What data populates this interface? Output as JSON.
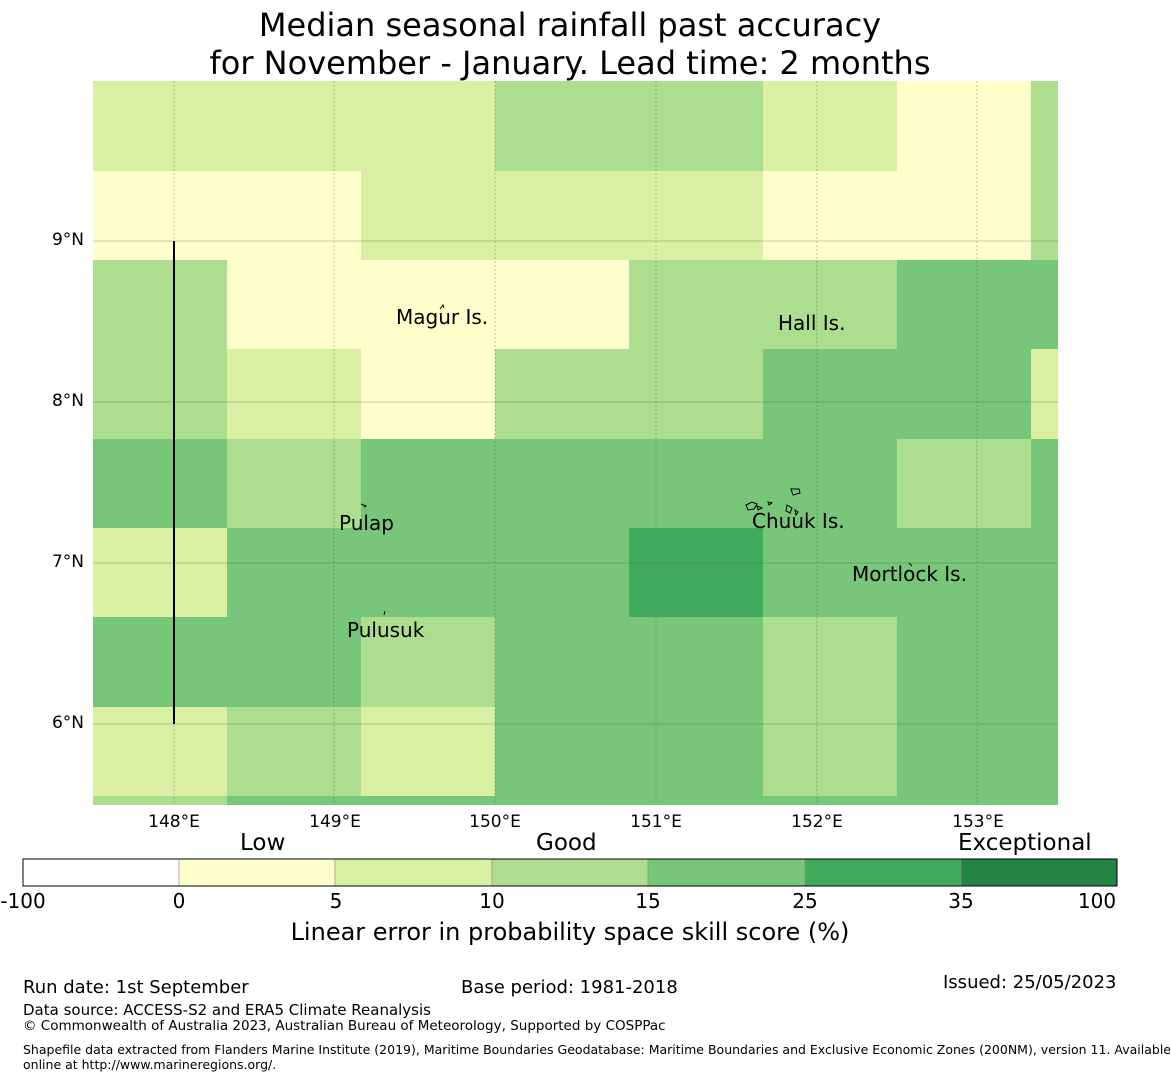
{
  "title": {
    "line1": "Median seasonal rainfall past accuracy",
    "line2": "for November - January. Lead time: 2 months"
  },
  "map": {
    "lat_labels": [
      "9°N",
      "8°N",
      "7°N",
      "6°N"
    ],
    "lon_labels": [
      "148°E",
      "149°E",
      "150°E",
      "151°E",
      "152°E",
      "153°E"
    ],
    "places": [
      "Magur Is.",
      "Hall Is.",
      "Pulap",
      "Chuuk Is.",
      "Mortlock Is.",
      "Pulusuk"
    ],
    "category_colors": [
      "#ffffcc",
      "#d9f0a3",
      "#addd8e",
      "#78c679",
      "#41ab5d",
      "#238443"
    ],
    "grid_categories": [
      [
        1,
        1,
        1,
        2,
        2,
        1,
        0,
        2
      ],
      [
        0,
        0,
        1,
        1,
        1,
        0,
        0,
        2
      ],
      [
        2,
        0,
        0,
        0,
        2,
        2,
        3,
        3
      ],
      [
        2,
        1,
        0,
        2,
        2,
        3,
        3,
        1
      ],
      [
        3,
        2,
        3,
        3,
        3,
        3,
        2,
        3
      ],
      [
        1,
        3,
        3,
        3,
        4,
        3,
        3,
        3
      ],
      [
        3,
        3,
        2,
        3,
        3,
        2,
        3,
        3
      ],
      [
        1,
        2,
        1,
        3,
        3,
        2,
        3,
        3
      ],
      [
        2,
        3,
        3,
        3,
        3,
        3,
        3,
        3
      ]
    ]
  },
  "colorbar": {
    "categories": [
      "Low",
      "Good",
      "Exceptional"
    ],
    "ticks": [
      "-100",
      "0",
      "5",
      "10",
      "15",
      "25",
      "35",
      "100"
    ],
    "colors": [
      "#ffffff",
      "#ffffcc",
      "#d9f0a3",
      "#addd8e",
      "#78c679",
      "#41ab5d",
      "#238443"
    ],
    "label": "Linear error in probability space skill score (%)"
  },
  "footer": {
    "run_date": "Run date: 1st September",
    "base_period": "Base period: 1981-2018",
    "issued": "Issued: 25/05/2023",
    "data_source": "Data source: ACCESS-S2 and ERA5 Climate Reanalysis",
    "copyright": "© Commonwealth of Australia 2023, Australian Bureau of Meteorology, Supported by COSPPac",
    "shapefile_line1": "Shapefile data extracted from Flanders Marine Institute (2019), Maritime Boundaries Geodatabase: Maritime Boundaries and Exclusive Economic Zones (200NM), version 11. Available",
    "shapefile_line2": "online at http://www.marineregions.org/."
  }
}
